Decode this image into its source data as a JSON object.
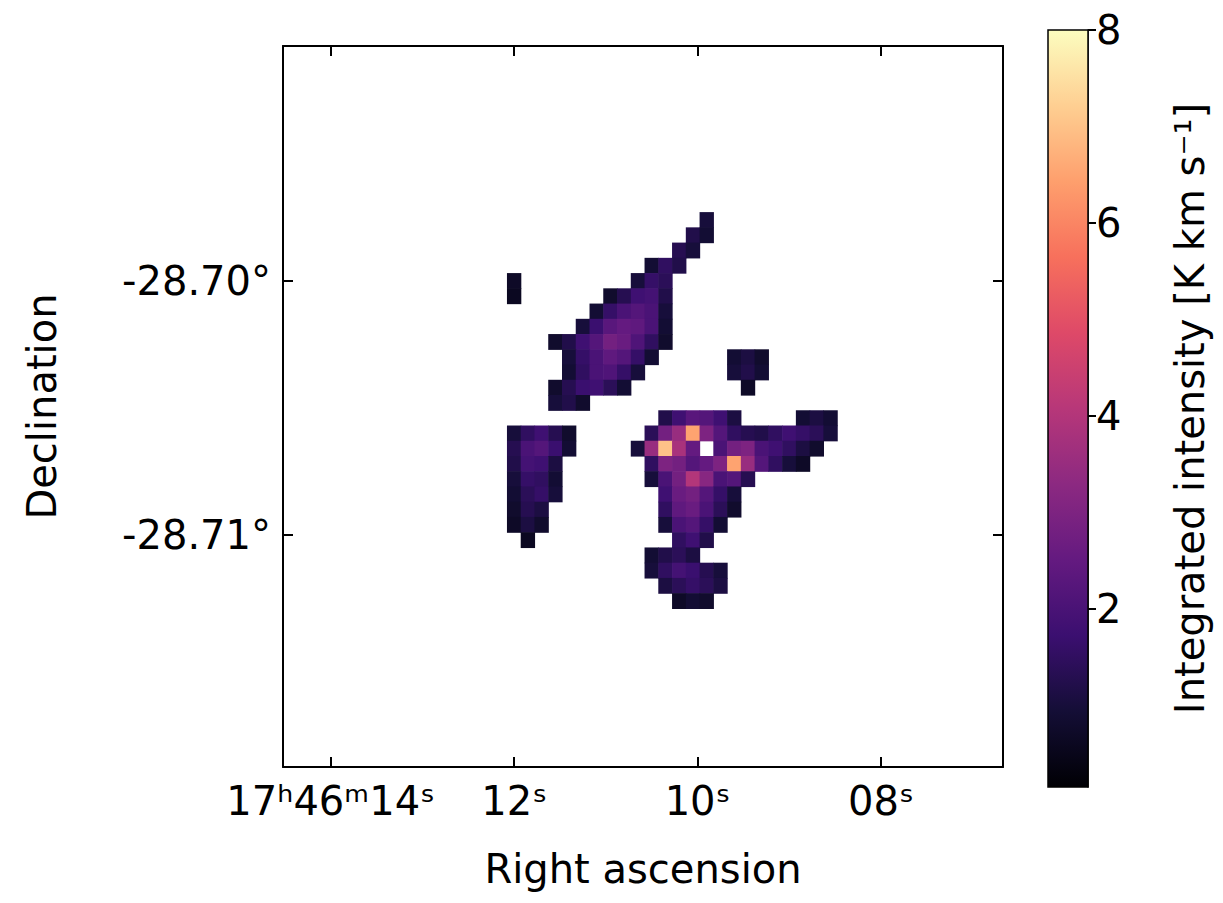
{
  "chart_data": {
    "type": "heatmap",
    "xlabel": "Right ascension",
    "ylabel": "Declination",
    "xlim": [
      14.52,
      6.67
    ],
    "xticks": [
      {
        "value": 14,
        "label": "17ʰ46ᵐ14ˢ"
      },
      {
        "value": 12,
        "label": "12ˢ"
      },
      {
        "value": 10,
        "label": "10ˢ"
      },
      {
        "value": 8,
        "label": "08ˢ"
      }
    ],
    "ylim": [
      -28.71913,
      -28.69075
    ],
    "yticks": [
      {
        "value": -28.7,
        "label": "-28.70°"
      },
      {
        "value": -28.71,
        "label": "-28.71°"
      }
    ],
    "grid": false,
    "colorbar": {
      "label": "Integrated intensity [K km s⁻¹]",
      "range": [
        0.15,
        8
      ],
      "ticks": [
        2,
        4,
        6,
        8
      ]
    },
    "map": {
      "ra": [
        12.15,
        12.0,
        11.85,
        11.7,
        11.55,
        11.4,
        11.25,
        11.1,
        10.95,
        10.8,
        10.65,
        10.5,
        10.35,
        10.2,
        10.05,
        9.9,
        9.75,
        9.6,
        9.45,
        9.3,
        9.15,
        9.0,
        8.85,
        8.7,
        8.55,
        8.4
      ],
      "dec": [
        -28.697,
        -28.6976,
        -28.6982,
        -28.6988,
        -28.6994,
        -28.7,
        -28.7006,
        -28.7012,
        -28.7018,
        -28.7024,
        -28.703,
        -28.7036,
        -28.7042,
        -28.7048,
        -28.7054,
        -28.706,
        -28.7066,
        -28.7072,
        -28.7078,
        -28.7084,
        -28.709,
        -28.7096,
        -28.7102,
        -28.7108,
        -28.7114,
        -28.712,
        -28.7126
      ],
      "intensity": [
        [
          null,
          null,
          null,
          null,
          null,
          null,
          null,
          null,
          null,
          null,
          null,
          null,
          null,
          null,
          null,
          null,
          null,
          null,
          null,
          null,
          null,
          null,
          null,
          null,
          null,
          null
        ],
        [
          null,
          null,
          null,
          null,
          null,
          null,
          null,
          null,
          null,
          null,
          null,
          null,
          null,
          null,
          null,
          1.0,
          null,
          null,
          null,
          null,
          null,
          null,
          null,
          null,
          null,
          null
        ],
        [
          null,
          null,
          null,
          null,
          null,
          null,
          null,
          null,
          null,
          null,
          null,
          null,
          null,
          null,
          1.2,
          0.9,
          null,
          null,
          null,
          null,
          null,
          null,
          null,
          null,
          null,
          null
        ],
        [
          null,
          null,
          null,
          null,
          null,
          null,
          null,
          null,
          null,
          null,
          null,
          null,
          null,
          1.3,
          1.0,
          null,
          null,
          null,
          null,
          null,
          null,
          null,
          null,
          null,
          null,
          null
        ],
        [
          null,
          null,
          null,
          null,
          null,
          null,
          null,
          null,
          null,
          null,
          null,
          0.9,
          1.5,
          1.2,
          null,
          null,
          null,
          null,
          null,
          null,
          null,
          null,
          null,
          null,
          null,
          null
        ],
        [
          null,
          0.7,
          null,
          null,
          null,
          null,
          null,
          null,
          null,
          null,
          1.0,
          1.6,
          1.4,
          null,
          null,
          null,
          null,
          null,
          null,
          null,
          null,
          null,
          null,
          null,
          null,
          null
        ],
        [
          null,
          0.6,
          null,
          null,
          null,
          null,
          null,
          null,
          0.8,
          1.3,
          1.8,
          1.9,
          1.2,
          null,
          null,
          null,
          null,
          null,
          null,
          null,
          null,
          null,
          null,
          null,
          null,
          null
        ],
        [
          null,
          null,
          null,
          null,
          null,
          null,
          null,
          0.9,
          1.6,
          2.0,
          2.2,
          2.0,
          1.0,
          null,
          null,
          null,
          null,
          null,
          null,
          null,
          null,
          null,
          null,
          null,
          null,
          null
        ],
        [
          null,
          null,
          null,
          null,
          null,
          null,
          1.0,
          1.7,
          2.3,
          2.5,
          2.4,
          2.0,
          0.9,
          null,
          null,
          null,
          null,
          null,
          null,
          null,
          null,
          null,
          null,
          null,
          null,
          null
        ],
        [
          null,
          null,
          null,
          null,
          0.8,
          1.2,
          1.8,
          2.2,
          2.8,
          2.6,
          2.1,
          1.5,
          0.8,
          null,
          null,
          null,
          null,
          null,
          null,
          null,
          null,
          null,
          null,
          null,
          null,
          null
        ],
        [
          null,
          null,
          null,
          null,
          null,
          1.0,
          1.6,
          2.0,
          2.4,
          2.2,
          1.6,
          0.9,
          null,
          null,
          null,
          null,
          null,
          0.9,
          1.1,
          0.8,
          null,
          null,
          null,
          null,
          null,
          null
        ],
        [
          null,
          null,
          null,
          null,
          null,
          0.9,
          1.5,
          2.0,
          2.1,
          1.6,
          1.0,
          null,
          null,
          null,
          null,
          null,
          null,
          1.0,
          1.2,
          0.9,
          null,
          null,
          null,
          null,
          null,
          null
        ],
        [
          null,
          null,
          null,
          null,
          0.8,
          1.3,
          1.7,
          1.8,
          1.4,
          0.9,
          null,
          null,
          null,
          null,
          null,
          null,
          null,
          null,
          0.7,
          null,
          null,
          null,
          null,
          null,
          null,
          null
        ],
        [
          null,
          null,
          null,
          null,
          1.0,
          1.2,
          0.8,
          null,
          null,
          null,
          null,
          null,
          null,
          null,
          null,
          null,
          null,
          null,
          null,
          null,
          null,
          null,
          null,
          null,
          null,
          null
        ],
        [
          null,
          null,
          null,
          null,
          null,
          null,
          null,
          null,
          null,
          null,
          null,
          null,
          1.2,
          1.8,
          2.3,
          2.2,
          1.8,
          1.1,
          null,
          null,
          null,
          null,
          0.9,
          1.1,
          0.9,
          null
        ],
        [
          null,
          1.0,
          1.5,
          1.8,
          1.3,
          0.8,
          null,
          null,
          null,
          null,
          null,
          1.4,
          2.8,
          3.5,
          6.5,
          3.0,
          2.2,
          1.5,
          1.3,
          1.2,
          1.5,
          1.8,
          1.6,
          1.4,
          1.0,
          null
        ],
        [
          null,
          1.3,
          2.0,
          2.2,
          1.7,
          0.9,
          null,
          null,
          null,
          null,
          1.0,
          3.5,
          7.0,
          3.8,
          2.5,
          null,
          2.0,
          2.8,
          3.0,
          2.0,
          1.8,
          1.5,
          1.1,
          0.8,
          null,
          null
        ],
        [
          null,
          1.2,
          1.9,
          1.8,
          1.1,
          null,
          null,
          null,
          null,
          null,
          null,
          1.5,
          3.0,
          2.8,
          2.2,
          2.5,
          3.0,
          6.5,
          3.5,
          2.2,
          1.5,
          1.0,
          0.7,
          null,
          null,
          null
        ],
        [
          null,
          1.0,
          1.6,
          1.5,
          0.9,
          null,
          null,
          null,
          null,
          null,
          null,
          1.0,
          2.0,
          2.8,
          4.0,
          3.2,
          2.0,
          2.2,
          1.3,
          null,
          null,
          null,
          null,
          null,
          null,
          null
        ],
        [
          null,
          0.9,
          1.4,
          1.6,
          1.0,
          null,
          null,
          null,
          null,
          null,
          null,
          null,
          1.8,
          2.6,
          2.8,
          2.2,
          1.6,
          1.0,
          null,
          null,
          null,
          null,
          null,
          null,
          null,
          null
        ],
        [
          null,
          0.8,
          1.3,
          1.1,
          null,
          null,
          null,
          null,
          null,
          null,
          null,
          null,
          1.5,
          2.4,
          2.6,
          2.0,
          1.4,
          0.8,
          null,
          null,
          null,
          null,
          null,
          null,
          null,
          null
        ],
        [
          null,
          0.7,
          1.1,
          0.8,
          null,
          null,
          null,
          null,
          null,
          null,
          null,
          null,
          1.0,
          2.0,
          2.2,
          1.6,
          0.9,
          null,
          null,
          null,
          null,
          null,
          null,
          null,
          null,
          null
        ],
        [
          null,
          null,
          0.6,
          null,
          null,
          null,
          null,
          null,
          null,
          null,
          null,
          null,
          null,
          1.5,
          1.8,
          1.2,
          null,
          null,
          null,
          null,
          null,
          null,
          null,
          null,
          null,
          null
        ],
        [
          null,
          null,
          null,
          null,
          null,
          null,
          null,
          null,
          null,
          null,
          null,
          0.9,
          1.2,
          1.4,
          1.1,
          null,
          null,
          null,
          null,
          null,
          null,
          null,
          null,
          null,
          null,
          null
        ],
        [
          null,
          null,
          null,
          null,
          null,
          null,
          null,
          null,
          null,
          null,
          null,
          1.0,
          1.5,
          1.9,
          1.7,
          1.3,
          1.0,
          null,
          null,
          null,
          null,
          null,
          null,
          null,
          null,
          null
        ],
        [
          null,
          null,
          null,
          null,
          null,
          null,
          null,
          null,
          null,
          null,
          null,
          null,
          1.1,
          1.4,
          1.6,
          1.4,
          1.1,
          null,
          null,
          null,
          null,
          null,
          null,
          null,
          null,
          null
        ],
        [
          null,
          null,
          null,
          null,
          null,
          null,
          null,
          null,
          null,
          null,
          null,
          null,
          null,
          0.7,
          0.9,
          0.8,
          null,
          null,
          null,
          null,
          null,
          null,
          null,
          null,
          null,
          null
        ]
      ]
    }
  }
}
